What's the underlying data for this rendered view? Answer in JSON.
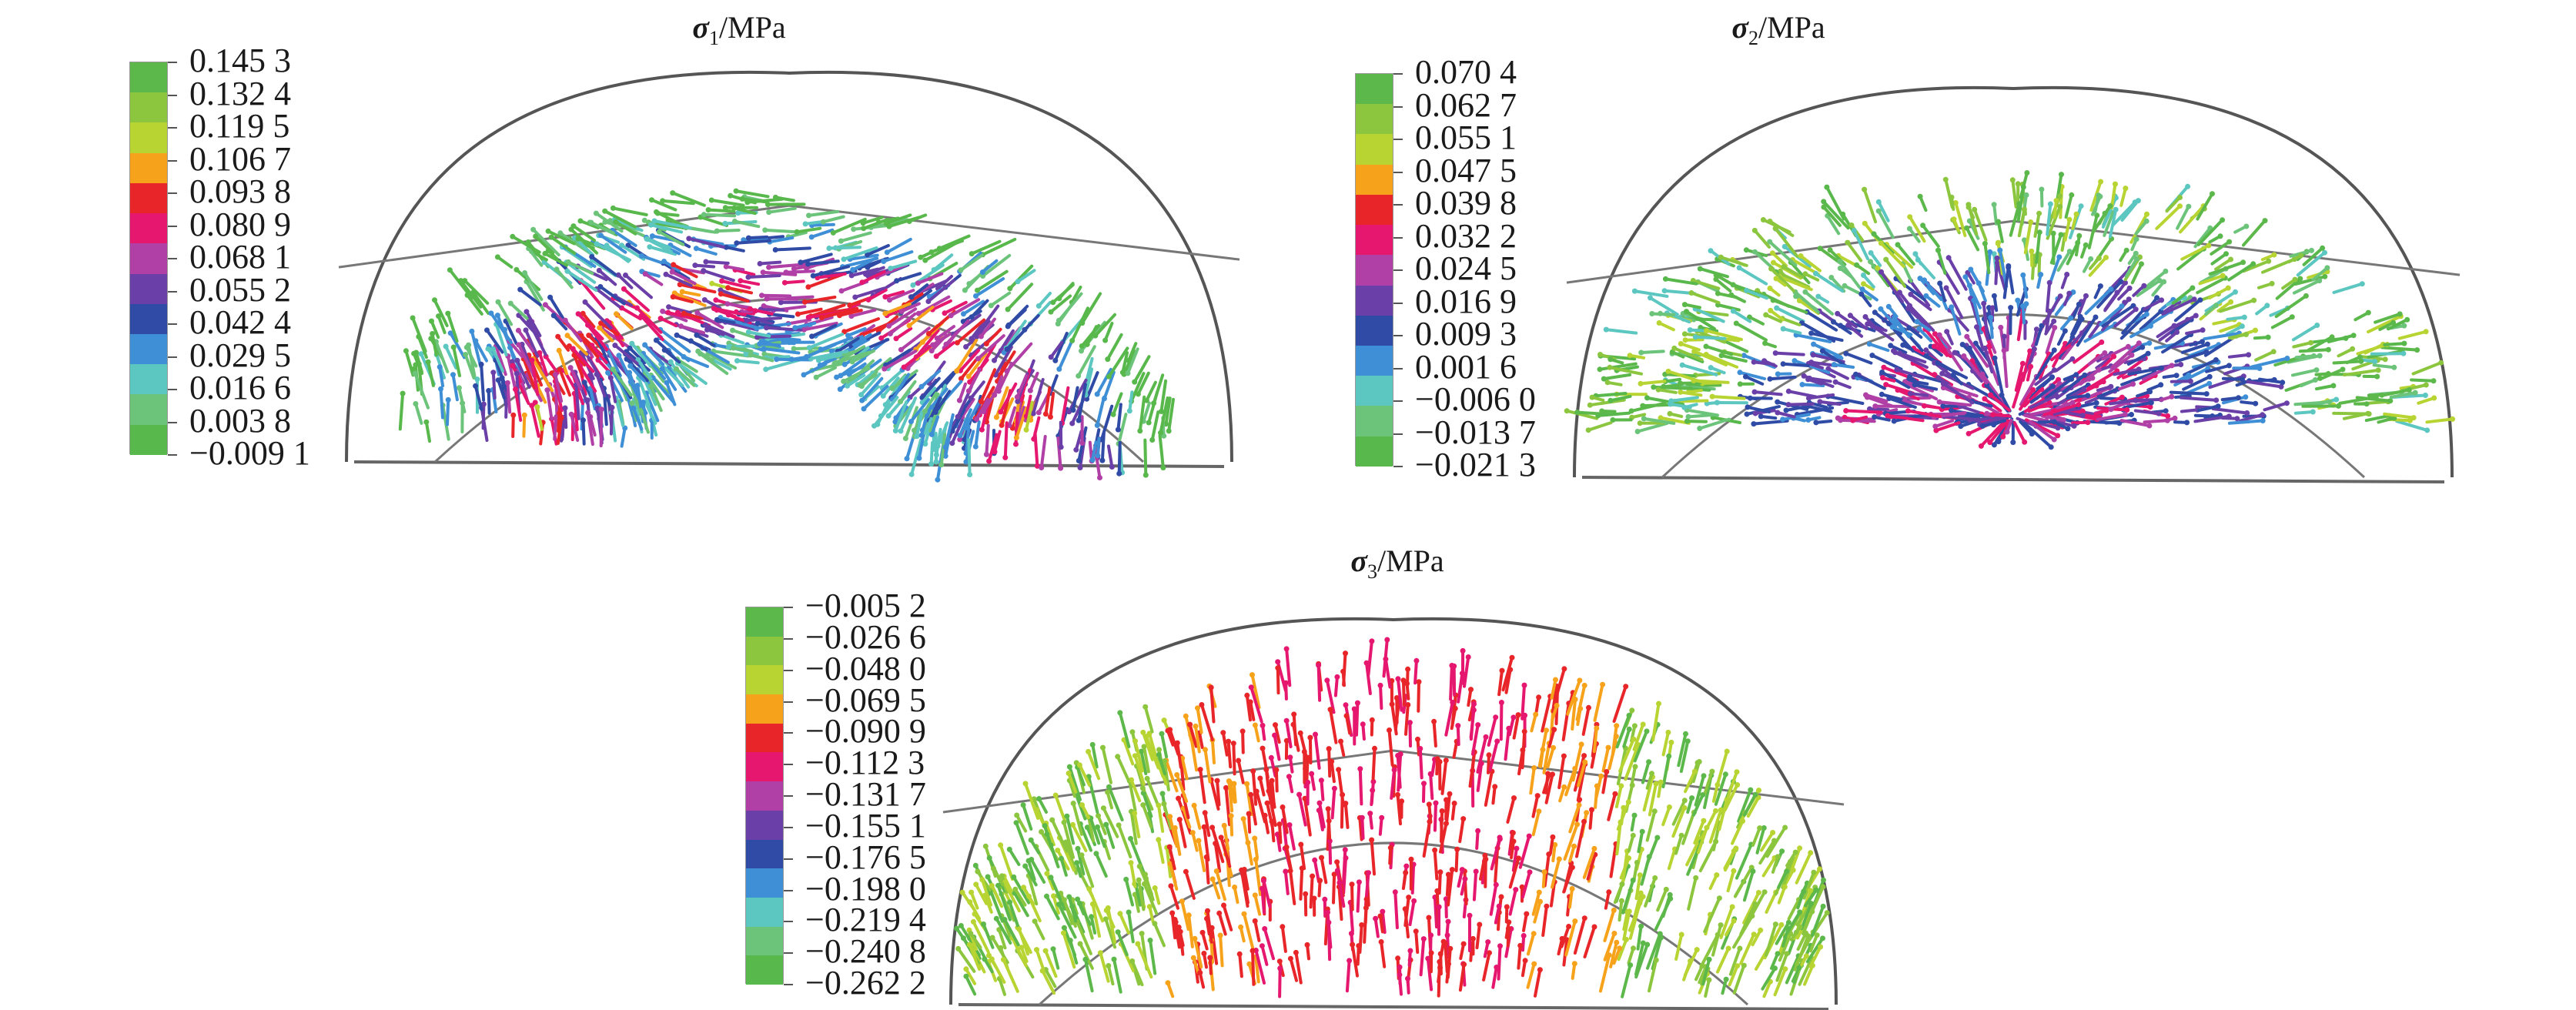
{
  "panels": [
    {
      "id": "sigma1",
      "title": {
        "symbol": "σ",
        "subscript": "1",
        "unit": "/MPa"
      },
      "legend_values": [
        "0.145 3",
        "0.132 4",
        "0.119 5",
        "0.106 7",
        "0.093 8",
        "0.080 9",
        "0.068 1",
        "0.055 2",
        "0.042 4",
        "0.029 5",
        "0.016 6",
        "0.003 8",
        "−0.009 1"
      ],
      "colors": [
        "#5cb84a",
        "#8cc63f",
        "#b8d432",
        "#f7a21b",
        "#e8262a",
        "#e5176e",
        "#b03fa6",
        "#6b3fa8",
        "#2f4ba6",
        "#3f8fd6",
        "#5cc6c0",
        "#6cc37a",
        "#58b84c"
      ]
    },
    {
      "id": "sigma2",
      "title": {
        "symbol": "σ",
        "subscript": "2",
        "unit": "/MPa"
      },
      "legend_values": [
        "0.070 4",
        "0.062 7",
        "0.055 1",
        "0.047 5",
        "0.039 8",
        "0.032 2",
        "0.024 5",
        "0.016 9",
        "0.009 3",
        "0.001 6",
        "−0.006 0",
        "−0.013 7",
        "−0.021 3"
      ],
      "colors": [
        "#5cb84a",
        "#8cc63f",
        "#b8d432",
        "#f7a21b",
        "#e8262a",
        "#e5176e",
        "#b03fa6",
        "#6b3fa8",
        "#2f4ba6",
        "#3f8fd6",
        "#5cc6c0",
        "#6cc37a",
        "#58b84c"
      ]
    },
    {
      "id": "sigma3",
      "title": {
        "symbol": "σ",
        "subscript": "3",
        "unit": "/MPa"
      },
      "legend_values": [
        "−0.005 2",
        "−0.026 6",
        "−0.048 0",
        "−0.069 5",
        "−0.090 9",
        "−0.112 3",
        "−0.131 7",
        "−0.155 1",
        "−0.176 5",
        "−0.198 0",
        "−0.219 4",
        "−0.240 8",
        "−0.262 2"
      ],
      "colors": [
        "#5cb84a",
        "#8cc63f",
        "#b8d432",
        "#f7a21b",
        "#e8262a",
        "#e5176e",
        "#b03fa6",
        "#6b3fa8",
        "#2f4ba6",
        "#3f8fd6",
        "#5cc6c0",
        "#6cc37a",
        "#58b84c"
      ]
    }
  ]
}
